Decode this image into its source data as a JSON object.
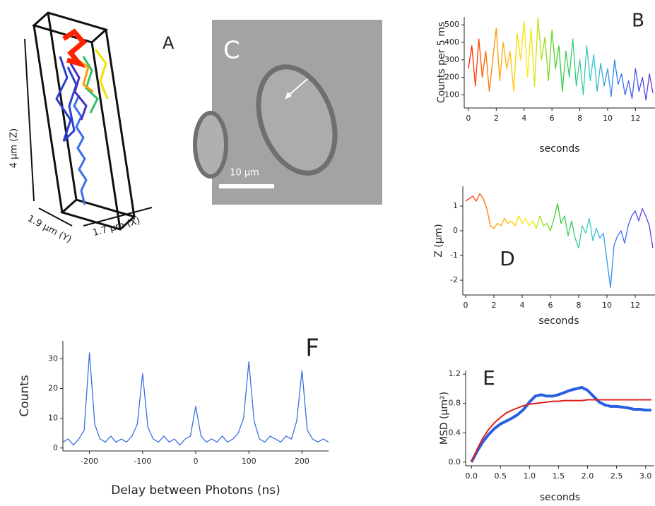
{
  "figure": {
    "panel_a": {
      "label": "A",
      "z_axis": "4 µm (Z)",
      "y_axis": "1.9 µm (Y)",
      "x_axis": "1.7 µm (X)"
    },
    "panel_c": {
      "label": "C",
      "scale_bar": "10 µm"
    }
  },
  "chart_data": [
    {
      "type": "line",
      "label": "B",
      "xlabel": "seconds",
      "ylabel": "Counts per 5 ms",
      "x": [
        0,
        0.25,
        0.5,
        0.75,
        1,
        1.25,
        1.5,
        1.75,
        2,
        2.25,
        2.5,
        2.75,
        3,
        3.25,
        3.5,
        3.75,
        4,
        4.25,
        4.5,
        4.75,
        5,
        5.25,
        5.5,
        5.75,
        6,
        6.25,
        6.5,
        6.75,
        7,
        7.25,
        7.5,
        7.75,
        8,
        8.25,
        8.5,
        8.75,
        9,
        9.25,
        9.5,
        9.75,
        10,
        10.25,
        10.5,
        10.75,
        11,
        11.25,
        11.5,
        11.75,
        12,
        12.25,
        12.5,
        12.75,
        13,
        13.25
      ],
      "series": [
        {
          "colors": [
            "#ff0000",
            "#ff9900",
            "#ffee00",
            "#33cc33",
            "#33cccc",
            "#3366ff",
            "#6633cc"
          ],
          "values": [
            250,
            380,
            150,
            420,
            200,
            350,
            120,
            300,
            480,
            180,
            400,
            250,
            350,
            120,
            450,
            300,
            520,
            200,
            480,
            150,
            540,
            300,
            430,
            180,
            470,
            250,
            380,
            120,
            350,
            200,
            420,
            150,
            300,
            100,
            380,
            180,
            330,
            120,
            280,
            150,
            250,
            90,
            300,
            160,
            220,
            100,
            180,
            80,
            250,
            120,
            200,
            70,
            220,
            110
          ]
        }
      ],
      "xlim": [
        -0.3,
        13.4
      ],
      "ylim": [
        25,
        545
      ],
      "xticks": [
        0,
        2,
        4,
        6,
        8,
        10,
        12
      ],
      "yticks": [
        100,
        200,
        300,
        400,
        500
      ]
    },
    {
      "type": "line",
      "label": "D",
      "xlabel": "seconds",
      "ylabel": "Z (µm)",
      "x": [
        0,
        0.25,
        0.5,
        0.75,
        1,
        1.25,
        1.5,
        1.75,
        2,
        2.25,
        2.5,
        2.75,
        3,
        3.25,
        3.5,
        3.75,
        4,
        4.25,
        4.5,
        4.75,
        5,
        5.25,
        5.5,
        5.75,
        6,
        6.25,
        6.5,
        6.75,
        7,
        7.25,
        7.5,
        7.75,
        8,
        8.25,
        8.5,
        8.75,
        9,
        9.25,
        9.5,
        9.75,
        10,
        10.25,
        10.5,
        10.75,
        11,
        11.25,
        11.5,
        11.75,
        12,
        12.25,
        12.5,
        12.75,
        13,
        13.25
      ],
      "series": [
        {
          "colors": [
            "#ff0000",
            "#ff9900",
            "#ffee00",
            "#33cc33",
            "#33cccc",
            "#3366ff",
            "#6633cc"
          ],
          "values": [
            1.2,
            1.3,
            1.4,
            1.2,
            1.5,
            1.3,
            0.9,
            0.2,
            0.1,
            0.3,
            0.2,
            0.5,
            0.3,
            0.4,
            0.2,
            0.6,
            0.3,
            0.5,
            0.2,
            0.4,
            0.1,
            0.6,
            0.2,
            0.3,
            0.0,
            0.5,
            1.1,
            0.3,
            0.6,
            -0.2,
            0.4,
            -0.3,
            -0.7,
            0.2,
            -0.1,
            0.5,
            -0.4,
            0.1,
            -0.3,
            -0.1,
            -1.2,
            -2.3,
            -0.6,
            -0.2,
            0.0,
            -0.5,
            0.2,
            0.6,
            0.8,
            0.4,
            0.9,
            0.6,
            0.2,
            -0.7
          ]
        }
      ],
      "xlim": [
        -0.2,
        13.4
      ],
      "ylim": [
        -2.6,
        1.8
      ],
      "xticks": [
        0,
        2,
        4,
        6,
        8,
        10,
        12
      ],
      "yticks": [
        -2,
        -1,
        0,
        1
      ]
    },
    {
      "type": "line",
      "label": "E",
      "xlabel": "seconds",
      "ylabel": "MSD (µm²)",
      "x": [
        0,
        0.1,
        0.2,
        0.3,
        0.4,
        0.5,
        0.6,
        0.7,
        0.8,
        0.9,
        1.0,
        1.1,
        1.2,
        1.3,
        1.4,
        1.5,
        1.6,
        1.7,
        1.8,
        1.9,
        2.0,
        2.1,
        2.2,
        2.3,
        2.4,
        2.5,
        2.6,
        2.7,
        2.8,
        2.9,
        3.0,
        3.1
      ],
      "series": [
        {
          "color": "#2a5fe0",
          "values": [
            0,
            0.15,
            0.28,
            0.38,
            0.46,
            0.52,
            0.56,
            0.6,
            0.65,
            0.72,
            0.82,
            0.9,
            0.92,
            0.9,
            0.9,
            0.92,
            0.95,
            0.98,
            1.0,
            1.02,
            0.98,
            0.9,
            0.82,
            0.78,
            0.76,
            0.76,
            0.75,
            0.74,
            0.72,
            0.72,
            0.71,
            0.71
          ]
        },
        {
          "color": "#e0201c",
          "values": [
            0,
            0.18,
            0.33,
            0.45,
            0.54,
            0.61,
            0.67,
            0.71,
            0.74,
            0.77,
            0.79,
            0.8,
            0.81,
            0.82,
            0.83,
            0.83,
            0.84,
            0.84,
            0.84,
            0.84,
            0.85,
            0.85,
            0.85,
            0.85,
            0.85,
            0.85,
            0.85,
            0.85,
            0.85,
            0.85,
            0.85,
            0.85
          ]
        }
      ],
      "xlim": [
        -0.1,
        3.15
      ],
      "ylim": [
        -0.05,
        1.25
      ],
      "xticks": [
        {
          "value": 0,
          "label": "0.0"
        },
        0.5,
        {
          "value": 1,
          "label": "1.0"
        },
        1.5,
        {
          "value": 2,
          "label": "2.0"
        },
        2.5,
        {
          "value": 3,
          "label": "3.0"
        }
      ],
      "yticks": [
        {
          "value": 0,
          "label": "0.0"
        },
        0.4,
        0.8,
        1.2
      ]
    },
    {
      "type": "line",
      "label": "F",
      "xlabel": "Delay between Photons (ns)",
      "ylabel": "Counts",
      "x": [
        -250,
        -240,
        -230,
        -220,
        -210,
        -200,
        -190,
        -180,
        -170,
        -160,
        -150,
        -140,
        -130,
        -120,
        -110,
        -100,
        -90,
        -80,
        -70,
        -60,
        -50,
        -40,
        -30,
        -20,
        -10,
        0,
        10,
        20,
        30,
        40,
        50,
        60,
        70,
        80,
        90,
        100,
        110,
        120,
        130,
        140,
        150,
        160,
        170,
        180,
        190,
        200,
        210,
        220,
        230,
        240,
        250
      ],
      "series": [
        {
          "color": "#3b6fe0",
          "values": [
            2,
            3,
            1,
            3,
            6,
            32,
            8,
            3,
            2,
            4,
            2,
            3,
            2,
            4,
            8,
            25,
            7,
            3,
            2,
            4,
            2,
            3,
            1,
            3,
            4,
            14,
            4,
            2,
            3,
            2,
            4,
            2,
            3,
            5,
            10,
            29,
            9,
            3,
            2,
            4,
            3,
            2,
            4,
            3,
            9,
            26,
            6,
            3,
            2,
            3,
            2
          ]
        }
      ],
      "xlim": [
        -250,
        250
      ],
      "ylim": [
        -1,
        36
      ],
      "xticks": [
        -200,
        -100,
        0,
        100,
        200
      ],
      "yticks": [
        0,
        10,
        20,
        30
      ]
    }
  ]
}
